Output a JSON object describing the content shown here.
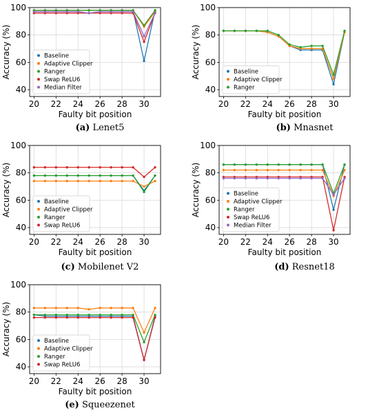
{
  "colors": {
    "Baseline": "#1f77b4",
    "Adaptive Clipper": "#ff7f0e",
    "Ranger": "#2ca02c",
    "Swap ReLU6": "#d62728",
    "Median Filter": "#9467bd"
  },
  "chart_data": [
    {
      "type": "line",
      "caption_letter": "(a)",
      "caption_name": "Lenet5",
      "xlabel": "Faulty bit position",
      "ylabel": "Accuracy (%)",
      "xlim": [
        19.6,
        31.5
      ],
      "ylim": [
        35,
        100
      ],
      "xticks": [
        20,
        22,
        24,
        26,
        28,
        30
      ],
      "yticks": [
        40,
        60,
        80,
        100
      ],
      "grid": true,
      "legend_position": "lower-left",
      "x": [
        20,
        21,
        22,
        23,
        24,
        25,
        26,
        27,
        28,
        29,
        30,
        31
      ],
      "series": [
        {
          "name": "Baseline",
          "values": [
            98,
            98,
            98,
            98,
            98,
            98,
            98,
            98,
            98,
            98,
            61,
            98
          ]
        },
        {
          "name": "Adaptive Clipper",
          "values": [
            98,
            98,
            98,
            98,
            98,
            98,
            98,
            98,
            98,
            98,
            86,
            97
          ]
        },
        {
          "name": "Ranger",
          "values": [
            98,
            98,
            98,
            98,
            98,
            98,
            98,
            98,
            98,
            98,
            87,
            98
          ]
        },
        {
          "name": "Swap ReLU6",
          "values": [
            96,
            96,
            96,
            96,
            96,
            96,
            96,
            96,
            96,
            96,
            75,
            96
          ]
        },
        {
          "name": "Median Filter",
          "values": [
            97,
            97,
            97,
            97,
            97,
            96,
            97,
            97,
            97,
            97,
            79,
            96
          ]
        }
      ]
    },
    {
      "type": "line",
      "caption_letter": "(b)",
      "caption_name": "Mnasnet",
      "xlabel": "Faulty bit position",
      "ylabel": "Accuracy (%)",
      "xlim": [
        19.6,
        31.5
      ],
      "ylim": [
        35,
        100
      ],
      "xticks": [
        20,
        22,
        24,
        26,
        28,
        30
      ],
      "yticks": [
        40,
        60,
        80,
        100
      ],
      "grid": true,
      "legend_position": "lower-left",
      "x": [
        20,
        21,
        22,
        23,
        24,
        25,
        26,
        27,
        28,
        29,
        30,
        31
      ],
      "series": [
        {
          "name": "Baseline",
          "values": [
            83,
            83,
            83,
            83,
            82,
            79,
            72,
            69,
            69,
            69,
            44,
            82
          ]
        },
        {
          "name": "Adaptive Clipper",
          "values": [
            83,
            83,
            83,
            83,
            82,
            79,
            72,
            70,
            70,
            70,
            48,
            82
          ]
        },
        {
          "name": "Ranger",
          "values": [
            83,
            83,
            83,
            83,
            83,
            80,
            73,
            71,
            72,
            72,
            51,
            83
          ]
        }
      ]
    },
    {
      "type": "line",
      "caption_letter": "(c)",
      "caption_name": "Mobilenet V2",
      "xlabel": "Faulty bit position",
      "ylabel": "Accuracy (%)",
      "xlim": [
        19.6,
        31.5
      ],
      "ylim": [
        35,
        100
      ],
      "xticks": [
        20,
        22,
        24,
        26,
        28,
        30
      ],
      "yticks": [
        40,
        60,
        80,
        100
      ],
      "grid": true,
      "legend_position": "lower-left",
      "x": [
        20,
        21,
        22,
        23,
        24,
        25,
        26,
        27,
        28,
        29,
        30,
        31
      ],
      "series": [
        {
          "name": "Baseline",
          "values": [
            78,
            78,
            78,
            78,
            78,
            78,
            78,
            78,
            78,
            78,
            67,
            78
          ]
        },
        {
          "name": "Adaptive Clipper",
          "values": [
            74,
            74,
            74,
            74,
            74,
            74,
            74,
            74,
            74,
            74,
            70,
            74
          ]
        },
        {
          "name": "Ranger",
          "values": [
            78,
            78,
            78,
            78,
            78,
            78,
            78,
            78,
            78,
            78,
            66,
            78
          ]
        },
        {
          "name": "Swap ReLU6",
          "values": [
            84,
            84,
            84,
            84,
            84,
            84,
            84,
            84,
            84,
            84,
            77,
            84
          ]
        }
      ]
    },
    {
      "type": "line",
      "caption_letter": "(d)",
      "caption_name": "Resnet18",
      "xlabel": "Faulty bit position",
      "ylabel": "Accuracy (%)",
      "xlim": [
        19.6,
        31.5
      ],
      "ylim": [
        35,
        100
      ],
      "xticks": [
        20,
        22,
        24,
        26,
        28,
        30
      ],
      "yticks": [
        40,
        60,
        80,
        100
      ],
      "grid": true,
      "legend_position": "lower-left",
      "x": [
        20,
        21,
        22,
        23,
        24,
        25,
        26,
        27,
        28,
        29,
        30,
        31
      ],
      "series": [
        {
          "name": "Baseline",
          "values": [
            86,
            86,
            86,
            86,
            86,
            86,
            86,
            86,
            86,
            86,
            53,
            86
          ]
        },
        {
          "name": "Adaptive Clipper",
          "values": [
            82,
            82,
            82,
            82,
            82,
            82,
            82,
            82,
            82,
            82,
            63,
            82
          ]
        },
        {
          "name": "Ranger",
          "values": [
            86,
            86,
            86,
            86,
            86,
            86,
            86,
            86,
            86,
            86,
            65,
            86
          ]
        },
        {
          "name": "Swap ReLU6",
          "values": [
            77,
            77,
            77,
            77,
            77,
            77,
            77,
            77,
            77,
            77,
            38,
            77
          ]
        },
        {
          "name": "Median Filter",
          "values": [
            76,
            76,
            76,
            76,
            76,
            76,
            76,
            76,
            76,
            76,
            64,
            76
          ]
        }
      ]
    },
    {
      "type": "line",
      "caption_letter": "(e)",
      "caption_name": "Squeezenet",
      "xlabel": "Faulty bit position",
      "ylabel": "Accuracy (%)",
      "xlim": [
        19.6,
        31.5
      ],
      "ylim": [
        35,
        100
      ],
      "xticks": [
        20,
        22,
        24,
        26,
        28,
        30
      ],
      "yticks": [
        40,
        60,
        80,
        100
      ],
      "grid": true,
      "legend_position": "lower-left",
      "x": [
        20,
        21,
        22,
        23,
        24,
        25,
        26,
        27,
        28,
        29,
        30,
        31
      ],
      "series": [
        {
          "name": "Baseline",
          "values": [
            78,
            77,
            77,
            77,
            77,
            77,
            77,
            77,
            77,
            77,
            45,
            77
          ]
        },
        {
          "name": "Adaptive Clipper",
          "values": [
            83,
            83,
            83,
            83,
            83,
            82,
            83,
            83,
            83,
            83,
            65,
            83
          ]
        },
        {
          "name": "Ranger",
          "values": [
            78,
            78,
            78,
            78,
            78,
            78,
            78,
            78,
            78,
            78,
            58,
            78
          ]
        },
        {
          "name": "Swap ReLU6",
          "values": [
            76,
            76,
            76,
            76,
            76,
            76,
            76,
            76,
            76,
            76,
            45,
            76
          ]
        }
      ]
    }
  ]
}
